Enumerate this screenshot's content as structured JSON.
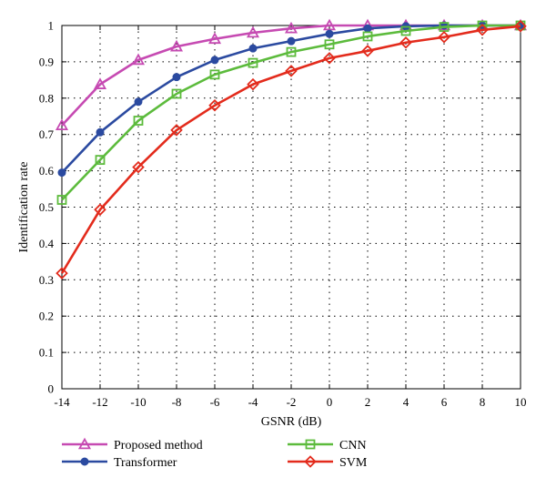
{
  "chart_data": {
    "type": "line",
    "xlabel": "GSNR (dB)",
    "ylabel": "Identification rate",
    "xlim": [
      -14,
      10
    ],
    "ylim": [
      0,
      1
    ],
    "x": [
      -14,
      -12,
      -10,
      -8,
      -6,
      -4,
      -2,
      0,
      2,
      4,
      6,
      8,
      10
    ],
    "xticks": [
      "-14",
      "-12",
      "-10",
      "-8",
      "-6",
      "-4",
      "-2",
      "0",
      "2",
      "4",
      "6",
      "8",
      "10"
    ],
    "yticks": [
      "0",
      "0.1",
      "0.2",
      "0.3",
      "0.4",
      "0.5",
      "0.6",
      "0.7",
      "0.8",
      "0.9",
      "1"
    ],
    "grid": true,
    "legend_position": "bottom",
    "series": [
      {
        "name": "Proposed method",
        "color": "#c64ab2",
        "marker": "triangle-icon",
        "values": [
          0.725,
          0.838,
          0.905,
          0.942,
          0.963,
          0.98,
          0.992,
          1.0,
          1.0,
          1.0,
          1.0,
          1.0,
          1.0
        ]
      },
      {
        "name": "Transformer",
        "color": "#2b4aa0",
        "marker": "dot-icon",
        "values": [
          0.595,
          0.706,
          0.79,
          0.858,
          0.905,
          0.937,
          0.957,
          0.977,
          0.992,
          0.998,
          1.0,
          1.0,
          1.0
        ]
      },
      {
        "name": "CNN",
        "color": "#5cbb3c",
        "marker": "square-icon",
        "values": [
          0.52,
          0.63,
          0.738,
          0.812,
          0.865,
          0.897,
          0.927,
          0.948,
          0.97,
          0.985,
          0.996,
          1.0,
          1.0
        ]
      },
      {
        "name": "SVM",
        "color": "#e32b1c",
        "marker": "diamond-icon",
        "values": [
          0.318,
          0.493,
          0.61,
          0.712,
          0.78,
          0.838,
          0.875,
          0.91,
          0.93,
          0.953,
          0.968,
          0.988,
          0.998
        ]
      }
    ]
  }
}
